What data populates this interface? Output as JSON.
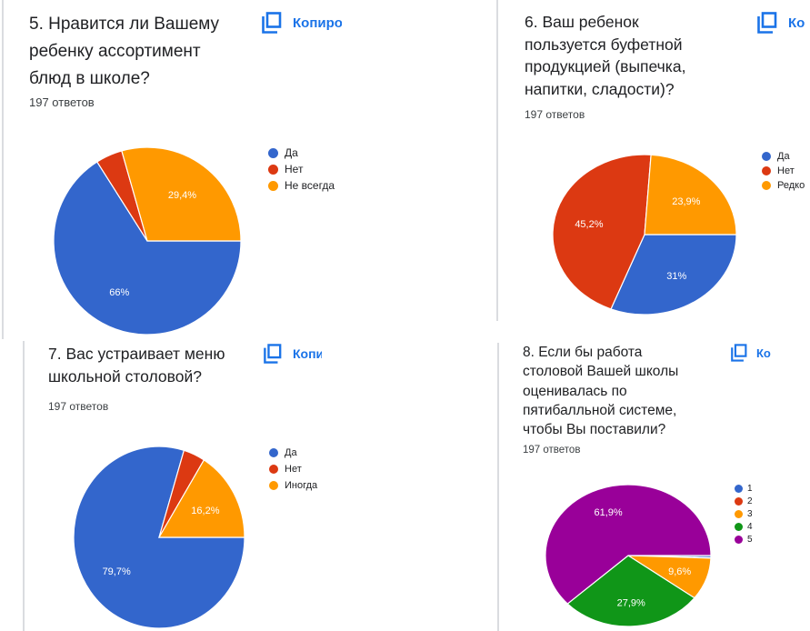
{
  "copy_label_truncated": [
    "Копиро",
    "Ко",
    "Копи",
    "Ко"
  ],
  "colors": {
    "blue": "#3366cc",
    "red": "#dc3912",
    "orange": "#ff9900",
    "green": "#109618",
    "purple": "#990099",
    "accent": "#1a73e8"
  },
  "questions": [
    {
      "title_lines": [
        "5. Нравится ли Вашему",
        "ребенку ассортимент",
        "блюд в школе?"
      ],
      "responses": "197 ответов",
      "copy_label": "Копиро"
    },
    {
      "title_lines": [
        "6. Ваш ребенок",
        "пользуется буфетной",
        "продукцией (выпечка,",
        "напитки, сладости)?"
      ],
      "responses": "197 ответов",
      "copy_label": "Ко"
    },
    {
      "title_lines": [
        "7. Вас устраивает меню",
        "школьной столовой?"
      ],
      "responses": "197 ответов",
      "copy_label": "Копи"
    },
    {
      "title_lines": [
        "8. Если бы работа",
        "столовой Вашей школы",
        "оценивалась по",
        "пятибалльной системе,",
        "чтобы Вы поставили?"
      ],
      "responses": "197 ответов",
      "copy_label": "Ко"
    }
  ],
  "chart_data": [
    {
      "type": "pie",
      "title": "5. Нравится ли Вашему ребенку ассортимент блюд в школе?",
      "categories": [
        "Да",
        "Нет",
        "Не всегда"
      ],
      "values": [
        66.0,
        4.6,
        29.4
      ],
      "labels": [
        "66%",
        "",
        "29,4%"
      ],
      "colors": [
        "#3366cc",
        "#dc3912",
        "#ff9900"
      ],
      "legend": "right"
    },
    {
      "type": "pie",
      "title": "6. Ваш ребенок пользуется буфетной продукцией (выпечка, напитки, сладости)?",
      "categories": [
        "Да",
        "Нет",
        "Редко"
      ],
      "values": [
        31.0,
        45.2,
        23.9
      ],
      "labels": [
        "31%",
        "45,2%",
        "23,9%"
      ],
      "colors": [
        "#3366cc",
        "#dc3912",
        "#ff9900"
      ],
      "legend": "right"
    },
    {
      "type": "pie",
      "title": "7. Вас устраивает меню школьной столовой?",
      "categories": [
        "Да",
        "Нет",
        "Иногда"
      ],
      "values": [
        79.7,
        4.1,
        16.2
      ],
      "labels": [
        "79,7%",
        "",
        "16,2%"
      ],
      "colors": [
        "#3366cc",
        "#dc3912",
        "#ff9900"
      ],
      "legend": "right"
    },
    {
      "type": "pie",
      "title": "8. Если бы работа столовой Вашей школы оценивалась по пятибалльной системе, чтобы Вы поставили?",
      "categories": [
        "1",
        "2",
        "3",
        "4",
        "5"
      ],
      "values": [
        0.5,
        0.1,
        9.6,
        27.9,
        61.9
      ],
      "labels": [
        "",
        "",
        "9,6%",
        "27,9%",
        "61,9%"
      ],
      "colors": [
        "#3366cc",
        "#dc3912",
        "#ff9900",
        "#109618",
        "#990099"
      ],
      "legend": "right"
    }
  ]
}
